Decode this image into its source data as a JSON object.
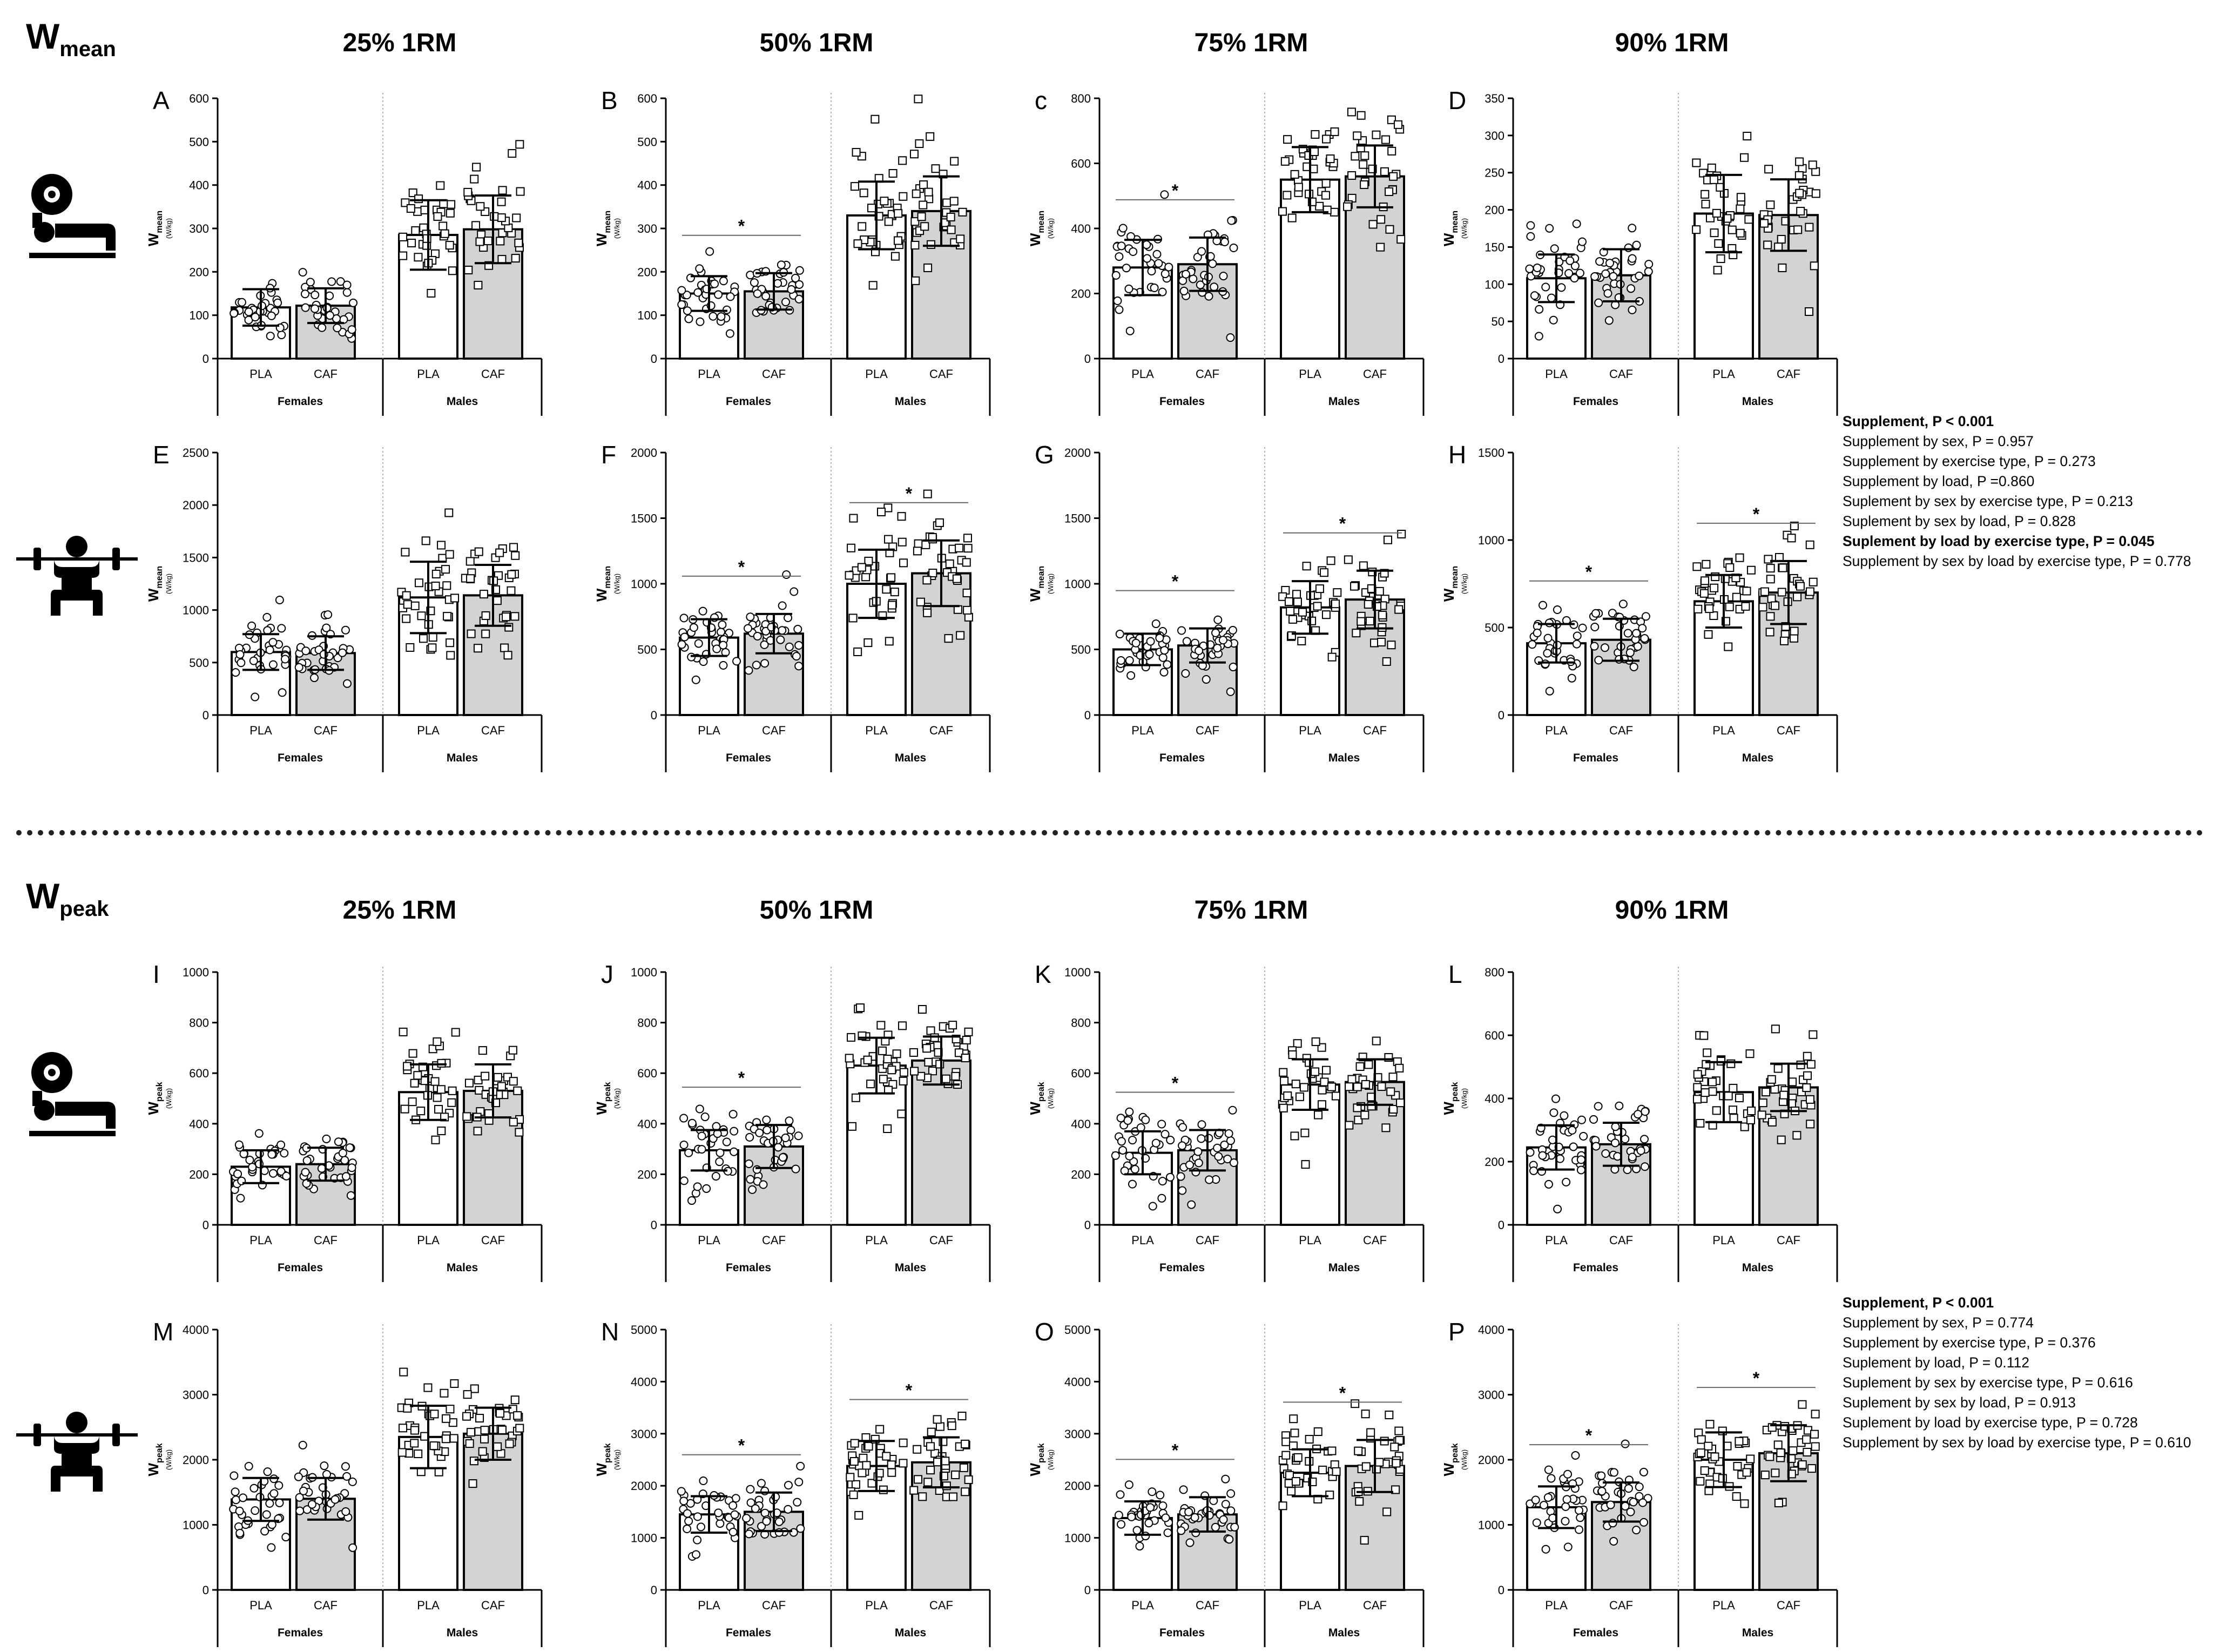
{
  "sections": [
    {
      "id": "mean",
      "title_main": "W",
      "title_sub": "mean"
    },
    {
      "id": "peak",
      "title_main": "W",
      "title_sub": "peak"
    }
  ],
  "column_titles": [
    "25% 1RM",
    "50% 1RM",
    "75% 1RM",
    "90% 1RM"
  ],
  "stats": [
    {
      "lines": [
        {
          "text": "Supplement, P < 0.001",
          "bold": true
        },
        {
          "text": "Supplement by sex, P = 0.957",
          "bold": false
        },
        {
          "text": "Supplement by exercise type, P = 0.273",
          "bold": false
        },
        {
          "text": "Supplement by load, P =0.860",
          "bold": false
        },
        {
          "text": "Suplement by sex by exercise type, P = 0.213",
          "bold": false
        },
        {
          "text": "Suplement by sex by load, P = 0.828",
          "bold": false
        },
        {
          "text": "Suplement by load by exercise type, P = 0.045",
          "bold": true
        },
        {
          "text": "Supplement by sex by load by exercise type, P = 0.778",
          "bold": false
        }
      ]
    },
    {
      "lines": [
        {
          "text": "Supplement, P < 0.001",
          "bold": true
        },
        {
          "text": "Supplement by sex, P = 0.774",
          "bold": false
        },
        {
          "text": "Supplement by exercise type, P = 0.376",
          "bold": false
        },
        {
          "text": "Suplement by load, P = 0.112",
          "bold": false
        },
        {
          "text": "Suplement by sex by exercise type, P = 0.616",
          "bold": false
        },
        {
          "text": "Suplement by sex by load, P = 0.913",
          "bold": false
        },
        {
          "text": "Suplement by load by exercise type, P = 0.728",
          "bold": false
        },
        {
          "text": "Supplement by sex by load by exercise type, P = 0.610",
          "bold": false
        }
      ]
    }
  ],
  "icons": [
    "bench-press-icon",
    "squat-icon",
    "bench-press-icon",
    "squat-icon"
  ],
  "chart_data": [
    {
      "panel": "A",
      "section": "mean",
      "exercise": "bench press",
      "load": "25% 1RM",
      "type": "bar",
      "ylabel_main": "W",
      "ylabel_sub": "mean",
      "ylabel_unit": "(W/kg)",
      "ylim": [
        0,
        600
      ],
      "yticks": [
        0,
        100,
        200,
        300,
        400,
        500,
        600
      ],
      "categories": [
        "PLA",
        "CAF",
        "PLA",
        "CAF"
      ],
      "groups": [
        "Females",
        "Males"
      ],
      "values": [
        118,
        122,
        285,
        298
      ],
      "sd": [
        42,
        40,
        80,
        78
      ],
      "sig": [
        false,
        false
      ]
    },
    {
      "panel": "B",
      "section": "mean",
      "exercise": "bench press",
      "load": "50% 1RM",
      "type": "bar",
      "ylabel_main": "W",
      "ylabel_sub": "mean",
      "ylabel_unit": "(W/kg)",
      "ylim": [
        0,
        600
      ],
      "yticks": [
        0,
        100,
        200,
        300,
        400,
        500,
        600
      ],
      "categories": [
        "PLA",
        "CAF",
        "PLA",
        "CAF"
      ],
      "groups": [
        "Females",
        "Males"
      ],
      "values": [
        150,
        155,
        330,
        340
      ],
      "sd": [
        40,
        42,
        78,
        80
      ],
      "sig": [
        true,
        false
      ]
    },
    {
      "panel": "c",
      "section": "mean",
      "exercise": "bench press",
      "load": "75% 1RM",
      "type": "bar",
      "ylabel_main": "W",
      "ylabel_sub": "mean",
      "ylabel_unit": "(W/kg)",
      "ylim": [
        0,
        800
      ],
      "yticks": [
        0,
        200,
        400,
        600,
        800
      ],
      "categories": [
        "PLA",
        "CAF",
        "PLA",
        "CAF"
      ],
      "groups": [
        "Females",
        "Males"
      ],
      "values": [
        280,
        290,
        550,
        560
      ],
      "sd": [
        85,
        82,
        100,
        95
      ],
      "sig": [
        true,
        false
      ]
    },
    {
      "panel": "D",
      "section": "mean",
      "exercise": "bench press",
      "load": "90% 1RM",
      "type": "bar",
      "ylabel_main": "W",
      "ylabel_sub": "mean",
      "ylabel_unit": "(W/kg)",
      "ylim": [
        0,
        350
      ],
      "yticks": [
        0,
        50,
        100,
        150,
        200,
        250,
        300,
        350
      ],
      "categories": [
        "PLA",
        "CAF",
        "PLA",
        "CAF"
      ],
      "groups": [
        "Females",
        "Males"
      ],
      "values": [
        108,
        112,
        195,
        193
      ],
      "sd": [
        32,
        35,
        52,
        48
      ],
      "sig": [
        false,
        false
      ]
    },
    {
      "panel": "E",
      "section": "mean",
      "exercise": "squat",
      "load": "25% 1RM",
      "type": "bar",
      "ylabel_main": "W",
      "ylabel_sub": "mean",
      "ylabel_unit": "(W/kg)",
      "ylim": [
        0,
        2500
      ],
      "yticks": [
        0,
        500,
        1000,
        1500,
        2000,
        2500
      ],
      "categories": [
        "PLA",
        "CAF",
        "PLA",
        "CAF"
      ],
      "groups": [
        "Females",
        "Males"
      ],
      "values": [
        600,
        590,
        1120,
        1140
      ],
      "sd": [
        170,
        160,
        340,
        290
      ],
      "sig": [
        false,
        false
      ]
    },
    {
      "panel": "F",
      "section": "mean",
      "exercise": "squat",
      "load": "50% 1RM",
      "type": "bar",
      "ylabel_main": "W",
      "ylabel_sub": "mean",
      "ylabel_unit": "(W/kg)",
      "ylim": [
        0,
        2000
      ],
      "yticks": [
        0,
        500,
        1000,
        1500,
        2000
      ],
      "categories": [
        "PLA",
        "CAF",
        "PLA",
        "CAF"
      ],
      "groups": [
        "Females",
        "Males"
      ],
      "values": [
        590,
        620,
        1000,
        1080
      ],
      "sd": [
        140,
        150,
        260,
        250
      ],
      "sig": [
        true,
        true
      ]
    },
    {
      "panel": "G",
      "section": "mean",
      "exercise": "squat",
      "load": "75% 1RM",
      "type": "bar",
      "ylabel_main": "W",
      "ylabel_sub": "mean",
      "ylabel_unit": "(W/kg)",
      "ylim": [
        0,
        2000
      ],
      "yticks": [
        0,
        500,
        1000,
        1500,
        2000
      ],
      "categories": [
        "PLA",
        "CAF",
        "PLA",
        "CAF"
      ],
      "groups": [
        "Females",
        "Males"
      ],
      "values": [
        500,
        530,
        820,
        880
      ],
      "sd": [
        120,
        130,
        200,
        220
      ],
      "sig": [
        true,
        true
      ]
    },
    {
      "panel": "H",
      "section": "mean",
      "exercise": "squat",
      "load": "90% 1RM",
      "type": "bar",
      "ylabel_main": "W",
      "ylabel_sub": "mean",
      "ylabel_unit": "(W/kg)",
      "ylim": [
        0,
        1500
      ],
      "yticks": [
        0,
        500,
        1000,
        1500
      ],
      "categories": [
        "PLA",
        "CAF",
        "PLA",
        "CAF"
      ],
      "groups": [
        "Females",
        "Males"
      ],
      "values": [
        410,
        430,
        650,
        700
      ],
      "sd": [
        110,
        120,
        150,
        180
      ],
      "sig": [
        true,
        true
      ]
    },
    {
      "panel": "I",
      "section": "peak",
      "exercise": "bench press",
      "load": "25% 1RM",
      "type": "bar",
      "ylabel_main": "W",
      "ylabel_sub": "peak",
      "ylabel_unit": "(W/kg)",
      "ylim": [
        0,
        1000
      ],
      "yticks": [
        0,
        200,
        400,
        600,
        800,
        1000
      ],
      "categories": [
        "PLA",
        "CAF",
        "PLA",
        "CAF"
      ],
      "groups": [
        "Females",
        "Males"
      ],
      "values": [
        230,
        240,
        525,
        530
      ],
      "sd": [
        65,
        65,
        110,
        105
      ],
      "sig": [
        false,
        false
      ]
    },
    {
      "panel": "J",
      "section": "peak",
      "exercise": "bench press",
      "load": "50% 1RM",
      "type": "bar",
      "ylabel_main": "W",
      "ylabel_sub": "peak",
      "ylabel_unit": "(W/kg)",
      "ylim": [
        0,
        1000
      ],
      "yticks": [
        0,
        200,
        400,
        600,
        800,
        1000
      ],
      "categories": [
        "PLA",
        "CAF",
        "PLA",
        "CAF"
      ],
      "groups": [
        "Females",
        "Males"
      ],
      "values": [
        295,
        310,
        630,
        650
      ],
      "sd": [
        80,
        85,
        110,
        95
      ],
      "sig": [
        true,
        false
      ]
    },
    {
      "panel": "K",
      "section": "peak",
      "exercise": "bench press",
      "load": "75% 1RM",
      "type": "bar",
      "ylabel_main": "W",
      "ylabel_sub": "peak",
      "ylabel_unit": "(W/kg)",
      "ylim": [
        0,
        1000
      ],
      "yticks": [
        0,
        200,
        400,
        600,
        800,
        1000
      ],
      "categories": [
        "PLA",
        "CAF",
        "PLA",
        "CAF"
      ],
      "groups": [
        "Females",
        "Males"
      ],
      "values": [
        285,
        295,
        555,
        565
      ],
      "sd": [
        85,
        80,
        100,
        90
      ],
      "sig": [
        true,
        false
      ]
    },
    {
      "panel": "L",
      "section": "peak",
      "exercise": "bench press",
      "load": "90% 1RM",
      "type": "bar",
      "ylabel_main": "W",
      "ylabel_sub": "peak",
      "ylabel_unit": "(W/kg)",
      "ylim": [
        0,
        800
      ],
      "yticks": [
        0,
        200,
        400,
        600,
        800
      ],
      "categories": [
        "PLA",
        "CAF",
        "PLA",
        "CAF"
      ],
      "groups": [
        "Females",
        "Males"
      ],
      "values": [
        245,
        255,
        420,
        435
      ],
      "sd": [
        70,
        68,
        95,
        75
      ],
      "sig": [
        false,
        false
      ]
    },
    {
      "panel": "M",
      "section": "peak",
      "exercise": "squat",
      "load": "25% 1RM",
      "type": "bar",
      "ylabel_main": "W",
      "ylabel_sub": "peak",
      "ylabel_unit": "(W/kg)",
      "ylim": [
        0,
        4000
      ],
      "yticks": [
        0,
        1000,
        2000,
        3000,
        4000
      ],
      "categories": [
        "PLA",
        "CAF",
        "PLA",
        "CAF"
      ],
      "groups": [
        "Females",
        "Males"
      ],
      "values": [
        1390,
        1400,
        2350,
        2400
      ],
      "sd": [
        330,
        320,
        480,
        400
      ],
      "sig": [
        false,
        false
      ]
    },
    {
      "panel": "N",
      "section": "peak",
      "exercise": "squat",
      "load": "50% 1RM",
      "type": "bar",
      "ylabel_main": "W",
      "ylabel_sub": "peak",
      "ylabel_unit": "(W/kg)",
      "ylim": [
        0,
        5000
      ],
      "yticks": [
        0,
        1000,
        2000,
        3000,
        4000,
        5000
      ],
      "categories": [
        "PLA",
        "CAF",
        "PLA",
        "CAF"
      ],
      "groups": [
        "Females",
        "Males"
      ],
      "values": [
        1450,
        1500,
        2380,
        2450
      ],
      "sd": [
        350,
        370,
        480,
        480
      ],
      "sig": [
        true,
        true
      ]
    },
    {
      "panel": "O",
      "section": "peak",
      "exercise": "squat",
      "load": "75% 1RM",
      "type": "bar",
      "ylabel_main": "W",
      "ylabel_sub": "peak",
      "ylabel_unit": "(W/kg)",
      "ylim": [
        0,
        5000
      ],
      "yticks": [
        0,
        1000,
        2000,
        3000,
        4000,
        5000
      ],
      "categories": [
        "PLA",
        "CAF",
        "PLA",
        "CAF"
      ],
      "groups": [
        "Females",
        "Males"
      ],
      "values": [
        1380,
        1450,
        2250,
        2380
      ],
      "sd": [
        320,
        330,
        450,
        500
      ],
      "sig": [
        true,
        true
      ]
    },
    {
      "panel": "P",
      "section": "peak",
      "exercise": "squat",
      "load": "90% 1RM",
      "type": "bar",
      "ylabel_main": "W",
      "ylabel_sub": "peak",
      "ylabel_unit": "(W/kg)",
      "ylim": [
        0,
        4000
      ],
      "yticks": [
        0,
        1000,
        2000,
        3000,
        4000
      ],
      "categories": [
        "PLA",
        "CAF",
        "PLA",
        "CAF"
      ],
      "groups": [
        "Females",
        "Males"
      ],
      "values": [
        1270,
        1350,
        2000,
        2100
      ],
      "sd": [
        320,
        300,
        420,
        430
      ],
      "sig": [
        true,
        true
      ]
    }
  ]
}
